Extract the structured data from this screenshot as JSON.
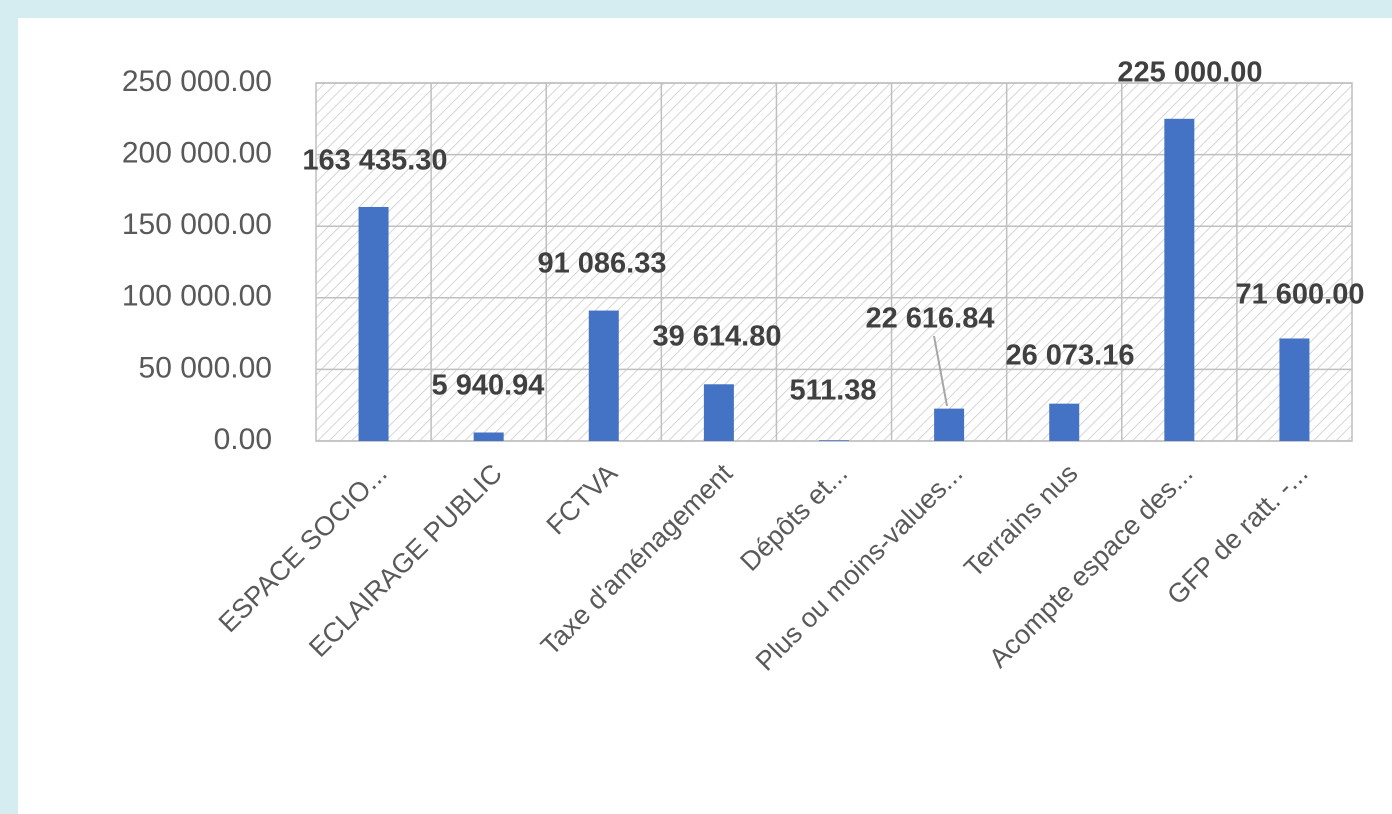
{
  "chart_data": {
    "type": "bar",
    "categories": [
      "ESPACE SOCIO...",
      "ECLAIRAGE PUBLIC",
      "FCTVA",
      "Taxe d'aménagement",
      "Dépôts et...",
      "Plus ou moins-values...",
      "Terrains nus",
      "Acompte espace des...",
      "GFP de ratt. -..."
    ],
    "values": [
      163435.3,
      5940.94,
      91086.33,
      39614.8,
      511.38,
      22616.84,
      26073.16,
      225000.0,
      71600.0
    ],
    "value_labels": [
      "163 435.30",
      "5 940.94",
      "91 086.33",
      "39 614.80",
      "511.38",
      "22 616.84",
      "26 073.16",
      "225 000.00",
      "71 600.00"
    ],
    "color": "#4472c4",
    "ylim": [
      0,
      250000
    ],
    "yticks": [
      {
        "value": 0,
        "label": "0.00"
      },
      {
        "value": 50000,
        "label": "50 000.00"
      },
      {
        "value": 100000,
        "label": "100 000.00"
      },
      {
        "value": 150000,
        "label": "150 000.00"
      },
      {
        "value": 200000,
        "label": "200 000.00"
      },
      {
        "value": 250000,
        "label": "250 000.00"
      }
    ],
    "grid": true
  }
}
